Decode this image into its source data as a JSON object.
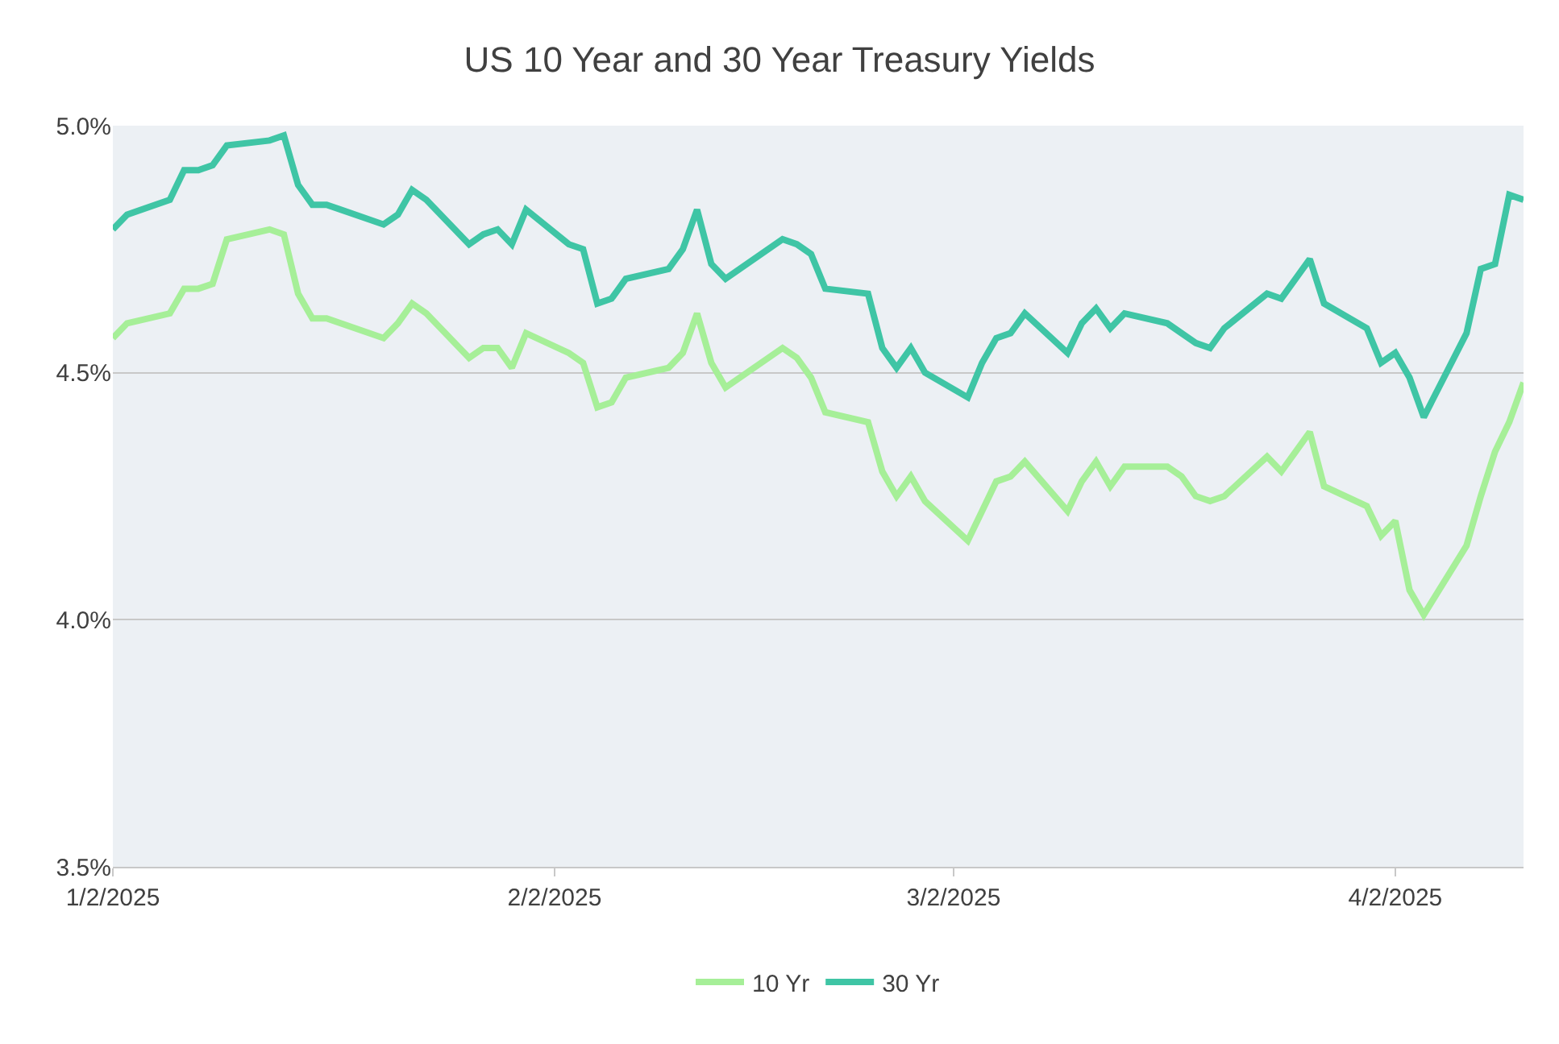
{
  "chart_data": {
    "type": "line",
    "title": "US 10 Year and 30 Year Treasury Yields",
    "x": [
      "2025-01-02",
      "2025-01-03",
      "2025-01-06",
      "2025-01-07",
      "2025-01-08",
      "2025-01-09",
      "2025-01-10",
      "2025-01-13",
      "2025-01-14",
      "2025-01-15",
      "2025-01-16",
      "2025-01-17",
      "2025-01-21",
      "2025-01-22",
      "2025-01-23",
      "2025-01-24",
      "2025-01-27",
      "2025-01-28",
      "2025-01-29",
      "2025-01-30",
      "2025-01-31",
      "2025-02-03",
      "2025-02-04",
      "2025-02-05",
      "2025-02-06",
      "2025-02-07",
      "2025-02-10",
      "2025-02-11",
      "2025-02-12",
      "2025-02-13",
      "2025-02-14",
      "2025-02-18",
      "2025-02-19",
      "2025-02-20",
      "2025-02-21",
      "2025-02-24",
      "2025-02-25",
      "2025-02-26",
      "2025-02-27",
      "2025-02-28",
      "2025-03-03",
      "2025-03-04",
      "2025-03-05",
      "2025-03-06",
      "2025-03-07",
      "2025-03-10",
      "2025-03-11",
      "2025-03-12",
      "2025-03-13",
      "2025-03-14",
      "2025-03-17",
      "2025-03-18",
      "2025-03-19",
      "2025-03-20",
      "2025-03-21",
      "2025-03-24",
      "2025-03-25",
      "2025-03-26",
      "2025-03-27",
      "2025-03-28",
      "2025-03-31",
      "2025-04-01",
      "2025-04-02",
      "2025-04-03",
      "2025-04-04",
      "2025-04-07",
      "2025-04-08",
      "2025-04-09",
      "2025-04-10",
      "2025-04-11"
    ],
    "series": [
      {
        "name": "10 Yr",
        "color": "#a6ef98",
        "values": [
          4.57,
          4.6,
          4.62,
          4.67,
          4.67,
          4.68,
          4.77,
          4.79,
          4.78,
          4.66,
          4.61,
          4.61,
          4.57,
          4.6,
          4.64,
          4.62,
          4.53,
          4.55,
          4.55,
          4.51,
          4.58,
          4.54,
          4.52,
          4.43,
          4.44,
          4.49,
          4.51,
          4.54,
          4.62,
          4.52,
          4.47,
          4.55,
          4.53,
          4.49,
          4.42,
          4.4,
          4.3,
          4.25,
          4.29,
          4.24,
          4.16,
          4.22,
          4.28,
          4.29,
          4.32,
          4.22,
          4.28,
          4.32,
          4.27,
          4.31,
          4.31,
          4.29,
          4.25,
          4.24,
          4.25,
          4.33,
          4.3,
          4.34,
          4.38,
          4.27,
          4.23,
          4.17,
          4.2,
          4.06,
          4.01,
          4.15,
          4.25,
          4.34,
          4.4,
          4.48
        ]
      },
      {
        "name": "30 Yr",
        "color": "#3fc5a5",
        "values": [
          4.79,
          4.82,
          4.85,
          4.91,
          4.91,
          4.92,
          4.96,
          4.97,
          4.98,
          4.88,
          4.84,
          4.84,
          4.8,
          4.82,
          4.87,
          4.85,
          4.76,
          4.78,
          4.79,
          4.76,
          4.83,
          4.76,
          4.75,
          4.64,
          4.65,
          4.69,
          4.71,
          4.75,
          4.83,
          4.72,
          4.69,
          4.77,
          4.76,
          4.74,
          4.67,
          4.66,
          4.55,
          4.51,
          4.55,
          4.5,
          4.45,
          4.52,
          4.57,
          4.58,
          4.62,
          4.54,
          4.6,
          4.63,
          4.59,
          4.62,
          4.6,
          4.58,
          4.56,
          4.55,
          4.59,
          4.66,
          4.65,
          4.69,
          4.73,
          4.64,
          4.59,
          4.52,
          4.54,
          4.49,
          4.41,
          4.58,
          4.71,
          4.72,
          4.86,
          4.85
        ]
      }
    ],
    "xlim": [
      "2025-01-02",
      "2025-04-11"
    ],
    "xticks": [
      {
        "value": "2025-01-02",
        "label": "1/2/2025"
      },
      {
        "value": "2025-02-02",
        "label": "2/2/2025"
      },
      {
        "value": "2025-03-02",
        "label": "3/2/2025"
      },
      {
        "value": "2025-04-02",
        "label": "4/2/2025"
      }
    ],
    "ylim": [
      3.5,
      5.0
    ],
    "yticks": [
      {
        "value": 3.5,
        "label": "3.5%"
      },
      {
        "value": 4.0,
        "label": "4.0%"
      },
      {
        "value": 4.5,
        "label": "4.5%"
      },
      {
        "value": 5.0,
        "label": "5.0%"
      }
    ],
    "grid": "y",
    "legend": "bottom",
    "line_style": "solid",
    "marker": "none"
  }
}
